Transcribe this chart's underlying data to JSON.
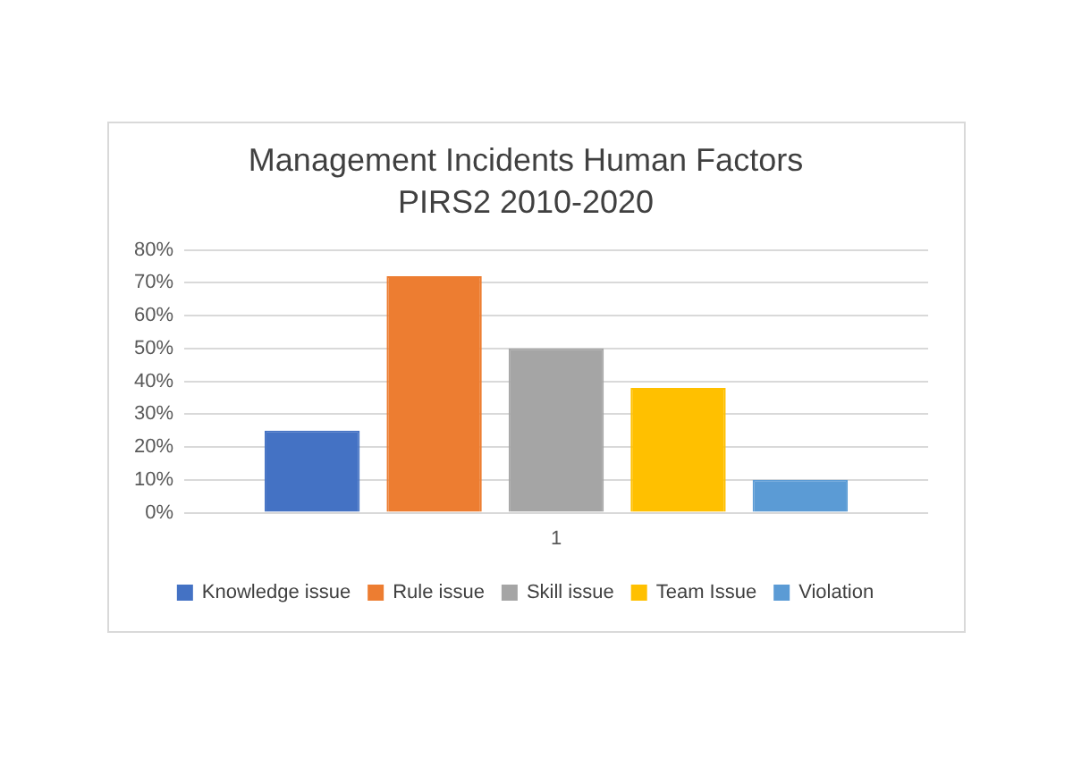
{
  "chart_data": {
    "type": "bar",
    "title": "Management Incidents Human Factors\nPIRS2 2010-2020",
    "categories": [
      "1"
    ],
    "series": [
      {
        "name": "Knowledge issue",
        "color": "#4472c4",
        "values": [
          25
        ]
      },
      {
        "name": "Rule issue",
        "color": "#ed7d31",
        "values": [
          72
        ]
      },
      {
        "name": "Skill issue",
        "color": "#a5a5a5",
        "values": [
          50
        ]
      },
      {
        "name": "Team Issue",
        "color": "#ffc000",
        "values": [
          38
        ]
      },
      {
        "name": "Violation",
        "color": "#5b9bd5",
        "values": [
          10
        ]
      }
    ],
    "ylim": [
      0,
      80
    ],
    "yticks": [
      {
        "value": 0,
        "label": "0%"
      },
      {
        "value": 10,
        "label": "10%"
      },
      {
        "value": 20,
        "label": "20%"
      },
      {
        "value": 30,
        "label": "30%"
      },
      {
        "value": 40,
        "label": "40%"
      },
      {
        "value": 50,
        "label": "50%"
      },
      {
        "value": 60,
        "label": "60%"
      },
      {
        "value": 70,
        "label": "70%"
      },
      {
        "value": 80,
        "label": "80%"
      }
    ],
    "grid": "y",
    "legend": "bottom"
  }
}
